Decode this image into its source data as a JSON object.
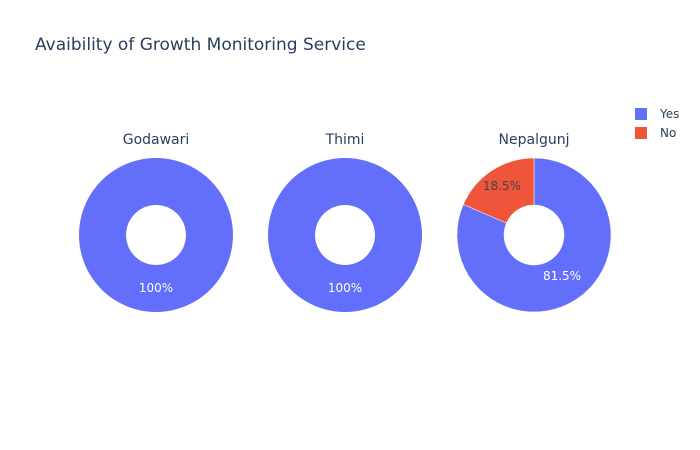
{
  "title": "Avaibility of Growth Monitoring Service",
  "colors": {
    "Yes": "#636efa",
    "No": "#ef553b"
  },
  "legend": {
    "position": "top-right",
    "items": [
      "Yes",
      "No"
    ]
  },
  "chart_data": {
    "type": "pie",
    "hole": true,
    "title": "Avaibility of Growth Monitoring Service",
    "labels": [
      "Yes",
      "No"
    ],
    "charts": [
      {
        "name": "Godawari",
        "values": [
          100,
          0
        ],
        "text": [
          "100%",
          ""
        ]
      },
      {
        "name": "Thimi",
        "values": [
          100,
          0
        ],
        "text": [
          "100%",
          ""
        ]
      },
      {
        "name": "Nepalgunj",
        "values": [
          81.5,
          18.5
        ],
        "text": [
          "81.5%",
          "18.5%"
        ]
      }
    ]
  }
}
